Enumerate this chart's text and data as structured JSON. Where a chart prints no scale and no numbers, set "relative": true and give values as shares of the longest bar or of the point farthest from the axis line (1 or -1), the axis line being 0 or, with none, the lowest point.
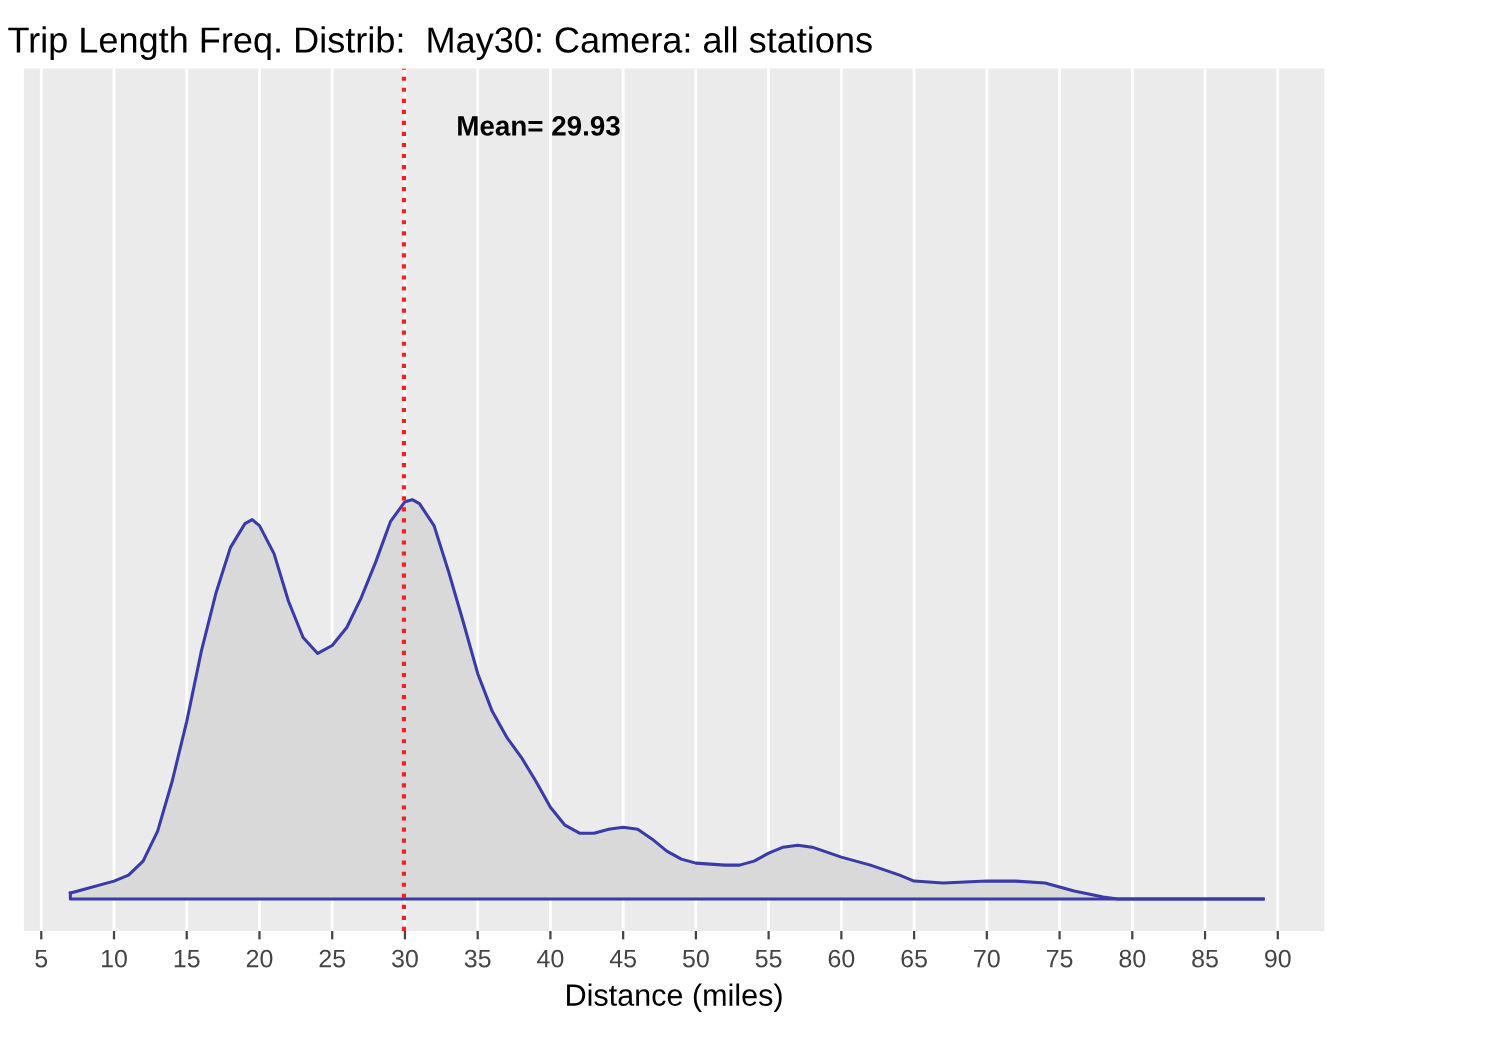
{
  "chart_data": {
    "type": "area",
    "title": "Trip Length Freq. Distrib:  May30: Camera: all stations",
    "xlabel": "Distance (miles)",
    "relative": true,
    "xlim": [
      3.8,
      93.2
    ],
    "xticks": [
      5,
      10,
      15,
      20,
      25,
      30,
      35,
      40,
      45,
      50,
      55,
      60,
      65,
      70,
      75,
      80,
      85,
      90
    ],
    "grid": "x",
    "series": [
      {
        "color": "#3b3ba8",
        "x": [
          7,
          10,
          11,
          12,
          13,
          14,
          15,
          16,
          17,
          18,
          19,
          19.5,
          20,
          21,
          22,
          23,
          24,
          25,
          26,
          27,
          28,
          29,
          30,
          30.5,
          31,
          32,
          33,
          34,
          35,
          36,
          37,
          38,
          39,
          40,
          41,
          42,
          43,
          44,
          45,
          46,
          47,
          48,
          49,
          50,
          52,
          53,
          54,
          55,
          56,
          57,
          58,
          60,
          62,
          64,
          65,
          67,
          70,
          72,
          74,
          76,
          78,
          79,
          89
        ],
        "values": [
          0.015,
          0.045,
          0.06,
          0.095,
          0.17,
          0.295,
          0.445,
          0.62,
          0.765,
          0.88,
          0.94,
          0.95,
          0.935,
          0.865,
          0.745,
          0.655,
          0.615,
          0.635,
          0.68,
          0.755,
          0.845,
          0.945,
          0.995,
          1.0,
          0.99,
          0.935,
          0.82,
          0.695,
          0.565,
          0.47,
          0.405,
          0.355,
          0.295,
          0.23,
          0.185,
          0.165,
          0.165,
          0.175,
          0.18,
          0.175,
          0.15,
          0.12,
          0.1,
          0.09,
          0.085,
          0.085,
          0.095,
          0.115,
          0.13,
          0.135,
          0.13,
          0.105,
          0.085,
          0.06,
          0.045,
          0.04,
          0.045,
          0.045,
          0.04,
          0.02,
          0.005,
          0,
          0
        ]
      }
    ],
    "ref_lines": [
      {
        "axis": "x",
        "value": 29.93,
        "label": "Mean= 29.93",
        "color": "#ee2222",
        "line_style": "dotted"
      }
    ]
  }
}
